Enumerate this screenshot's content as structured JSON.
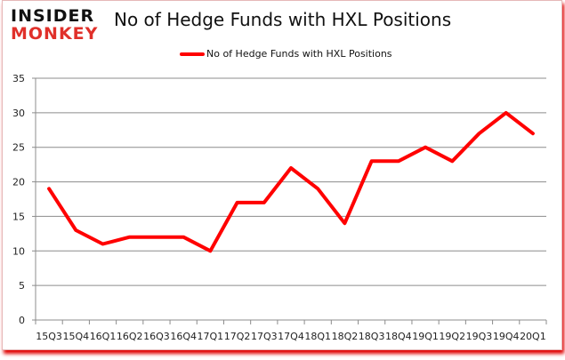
{
  "header": {
    "logo_line1": "INSIDER",
    "logo_line2": "MONKEY",
    "title": "No of Hedge Funds with HXL Positions"
  },
  "legend": {
    "label": "No of Hedge Funds with HXL Positions",
    "color": "#ff0000"
  },
  "chart_data": {
    "type": "line",
    "title": "No of Hedge Funds with HXL Positions",
    "xlabel": "",
    "ylabel": "",
    "categories": [
      "15Q3",
      "15Q4",
      "16Q1",
      "16Q2",
      "16Q3",
      "16Q4",
      "17Q1",
      "17Q2",
      "17Q3",
      "17Q4",
      "18Q1",
      "18Q2",
      "18Q3",
      "18Q4",
      "19Q1",
      "19Q2",
      "19Q3",
      "19Q4",
      "20Q1"
    ],
    "series": [
      {
        "name": "No of Hedge Funds with HXL Positions",
        "color": "#ff0000",
        "values": [
          19,
          13,
          11,
          12,
          12,
          12,
          10,
          17,
          17,
          22,
          19,
          14,
          23,
          23,
          25,
          23,
          27,
          30,
          27
        ]
      }
    ],
    "ylim": [
      0,
      35
    ],
    "yticks": [
      0,
      5,
      10,
      15,
      20,
      25,
      30,
      35
    ],
    "grid": true,
    "legend_position": "top"
  }
}
